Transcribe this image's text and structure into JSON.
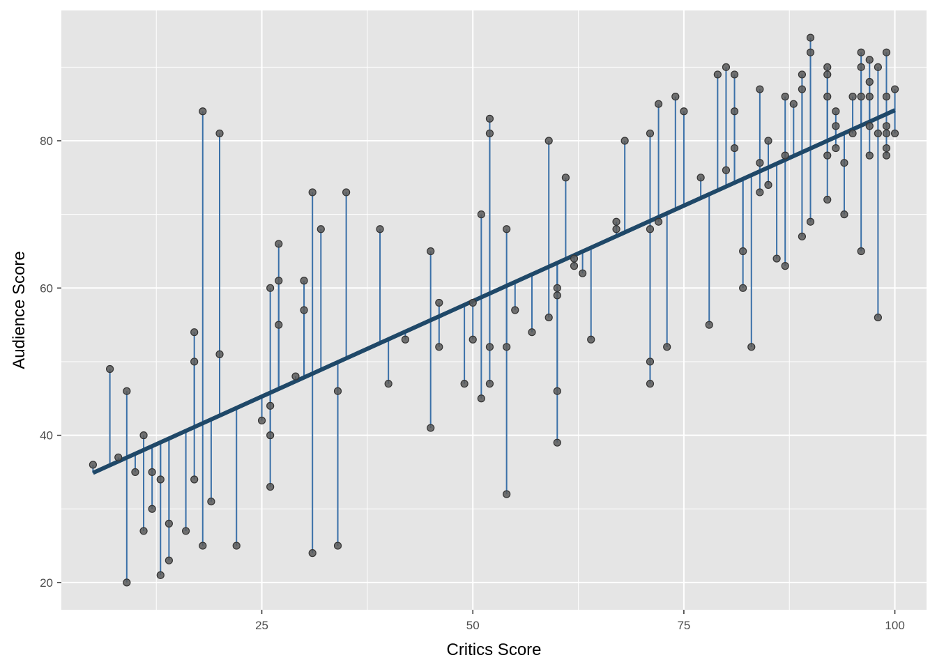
{
  "chart_data": {
    "type": "scatter",
    "title": "",
    "xlabel": "Critics Score",
    "ylabel": "Audience Score",
    "xlim": [
      1.25,
      103.75
    ],
    "ylim": [
      16.3,
      97.7
    ],
    "x_ticks": [
      25,
      50,
      75,
      100
    ],
    "y_ticks": [
      20,
      40,
      60,
      80
    ],
    "x_tick_labels": [
      "25",
      "50",
      "75",
      "100"
    ],
    "y_tick_labels": [
      "20",
      "40",
      "60",
      "80"
    ],
    "grid": true,
    "legend": "none",
    "fit_line": {
      "intercept": 32.3,
      "slope": 0.5185,
      "x_range": [
        5,
        100
      ]
    },
    "colors": {
      "panel": "#e5e5e5",
      "grid": "#ffffff",
      "point_fill": "#595959",
      "point_stroke": "#333333",
      "residual": "#3a70a8",
      "fit_line": "#1f4868"
    },
    "points": [
      {
        "x": 5,
        "y": 36
      },
      {
        "x": 7,
        "y": 49
      },
      {
        "x": 8,
        "y": 37
      },
      {
        "x": 9,
        "y": 46
      },
      {
        "x": 9,
        "y": 20
      },
      {
        "x": 10,
        "y": 35
      },
      {
        "x": 11,
        "y": 40
      },
      {
        "x": 11,
        "y": 27
      },
      {
        "x": 12,
        "y": 35
      },
      {
        "x": 12,
        "y": 30
      },
      {
        "x": 13,
        "y": 34
      },
      {
        "x": 13,
        "y": 21
      },
      {
        "x": 14,
        "y": 28
      },
      {
        "x": 14,
        "y": 23
      },
      {
        "x": 16,
        "y": 27
      },
      {
        "x": 17,
        "y": 54
      },
      {
        "x": 17,
        "y": 50
      },
      {
        "x": 17,
        "y": 34
      },
      {
        "x": 18,
        "y": 84
      },
      {
        "x": 18,
        "y": 25
      },
      {
        "x": 19,
        "y": 31
      },
      {
        "x": 20,
        "y": 81
      },
      {
        "x": 20,
        "y": 51
      },
      {
        "x": 22,
        "y": 25
      },
      {
        "x": 25,
        "y": 42
      },
      {
        "x": 26,
        "y": 60
      },
      {
        "x": 26,
        "y": 44
      },
      {
        "x": 26,
        "y": 40
      },
      {
        "x": 26,
        "y": 33
      },
      {
        "x": 27,
        "y": 66
      },
      {
        "x": 27,
        "y": 61
      },
      {
        "x": 27,
        "y": 55
      },
      {
        "x": 29,
        "y": 48
      },
      {
        "x": 30,
        "y": 61
      },
      {
        "x": 30,
        "y": 57
      },
      {
        "x": 31,
        "y": 73
      },
      {
        "x": 31,
        "y": 24
      },
      {
        "x": 32,
        "y": 68
      },
      {
        "x": 34,
        "y": 46
      },
      {
        "x": 34,
        "y": 25
      },
      {
        "x": 35,
        "y": 73
      },
      {
        "x": 39,
        "y": 68
      },
      {
        "x": 40,
        "y": 47
      },
      {
        "x": 42,
        "y": 53
      },
      {
        "x": 45,
        "y": 65
      },
      {
        "x": 45,
        "y": 41
      },
      {
        "x": 46,
        "y": 58
      },
      {
        "x": 46,
        "y": 52
      },
      {
        "x": 49,
        "y": 47
      },
      {
        "x": 50,
        "y": 58
      },
      {
        "x": 50,
        "y": 53
      },
      {
        "x": 51,
        "y": 70
      },
      {
        "x": 51,
        "y": 45
      },
      {
        "x": 52,
        "y": 83
      },
      {
        "x": 52,
        "y": 81
      },
      {
        "x": 52,
        "y": 52
      },
      {
        "x": 52,
        "y": 47
      },
      {
        "x": 54,
        "y": 68
      },
      {
        "x": 54,
        "y": 52
      },
      {
        "x": 54,
        "y": 32
      },
      {
        "x": 55,
        "y": 57
      },
      {
        "x": 57,
        "y": 54
      },
      {
        "x": 59,
        "y": 80
      },
      {
        "x": 59,
        "y": 56
      },
      {
        "x": 60,
        "y": 60
      },
      {
        "x": 60,
        "y": 59
      },
      {
        "x": 60,
        "y": 46
      },
      {
        "x": 60,
        "y": 39
      },
      {
        "x": 61,
        "y": 75
      },
      {
        "x": 62,
        "y": 64
      },
      {
        "x": 62,
        "y": 63
      },
      {
        "x": 63,
        "y": 62
      },
      {
        "x": 64,
        "y": 53
      },
      {
        "x": 67,
        "y": 69
      },
      {
        "x": 67,
        "y": 68
      },
      {
        "x": 68,
        "y": 80
      },
      {
        "x": 71,
        "y": 81
      },
      {
        "x": 71,
        "y": 68
      },
      {
        "x": 71,
        "y": 50
      },
      {
        "x": 71,
        "y": 47
      },
      {
        "x": 72,
        "y": 85
      },
      {
        "x": 72,
        "y": 69
      },
      {
        "x": 73,
        "y": 52
      },
      {
        "x": 74,
        "y": 86
      },
      {
        "x": 75,
        "y": 84
      },
      {
        "x": 77,
        "y": 75
      },
      {
        "x": 78,
        "y": 55
      },
      {
        "x": 79,
        "y": 89
      },
      {
        "x": 80,
        "y": 90
      },
      {
        "x": 80,
        "y": 76
      },
      {
        "x": 81,
        "y": 89
      },
      {
        "x": 81,
        "y": 84
      },
      {
        "x": 81,
        "y": 79
      },
      {
        "x": 82,
        "y": 65
      },
      {
        "x": 82,
        "y": 60
      },
      {
        "x": 83,
        "y": 52
      },
      {
        "x": 84,
        "y": 87
      },
      {
        "x": 84,
        "y": 77
      },
      {
        "x": 84,
        "y": 73
      },
      {
        "x": 85,
        "y": 80
      },
      {
        "x": 85,
        "y": 74
      },
      {
        "x": 86,
        "y": 64
      },
      {
        "x": 87,
        "y": 86
      },
      {
        "x": 87,
        "y": 78
      },
      {
        "x": 87,
        "y": 63
      },
      {
        "x": 88,
        "y": 85
      },
      {
        "x": 89,
        "y": 89
      },
      {
        "x": 89,
        "y": 87
      },
      {
        "x": 89,
        "y": 67
      },
      {
        "x": 90,
        "y": 94
      },
      {
        "x": 90,
        "y": 92
      },
      {
        "x": 90,
        "y": 69
      },
      {
        "x": 92,
        "y": 90
      },
      {
        "x": 92,
        "y": 89
      },
      {
        "x": 92,
        "y": 86
      },
      {
        "x": 92,
        "y": 78
      },
      {
        "x": 92,
        "y": 72
      },
      {
        "x": 93,
        "y": 84
      },
      {
        "x": 93,
        "y": 82
      },
      {
        "x": 93,
        "y": 79
      },
      {
        "x": 94,
        "y": 77
      },
      {
        "x": 94,
        "y": 70
      },
      {
        "x": 95,
        "y": 86
      },
      {
        "x": 95,
        "y": 81
      },
      {
        "x": 96,
        "y": 92
      },
      {
        "x": 96,
        "y": 90
      },
      {
        "x": 96,
        "y": 86
      },
      {
        "x": 96,
        "y": 65
      },
      {
        "x": 97,
        "y": 91
      },
      {
        "x": 97,
        "y": 88
      },
      {
        "x": 97,
        "y": 86
      },
      {
        "x": 97,
        "y": 82
      },
      {
        "x": 97,
        "y": 78
      },
      {
        "x": 98,
        "y": 90
      },
      {
        "x": 98,
        "y": 81
      },
      {
        "x": 98,
        "y": 56
      },
      {
        "x": 99,
        "y": 92
      },
      {
        "x": 99,
        "y": 86
      },
      {
        "x": 99,
        "y": 82
      },
      {
        "x": 99,
        "y": 81
      },
      {
        "x": 99,
        "y": 79
      },
      {
        "x": 99,
        "y": 78
      },
      {
        "x": 100,
        "y": 87
      },
      {
        "x": 100,
        "y": 81
      }
    ]
  }
}
